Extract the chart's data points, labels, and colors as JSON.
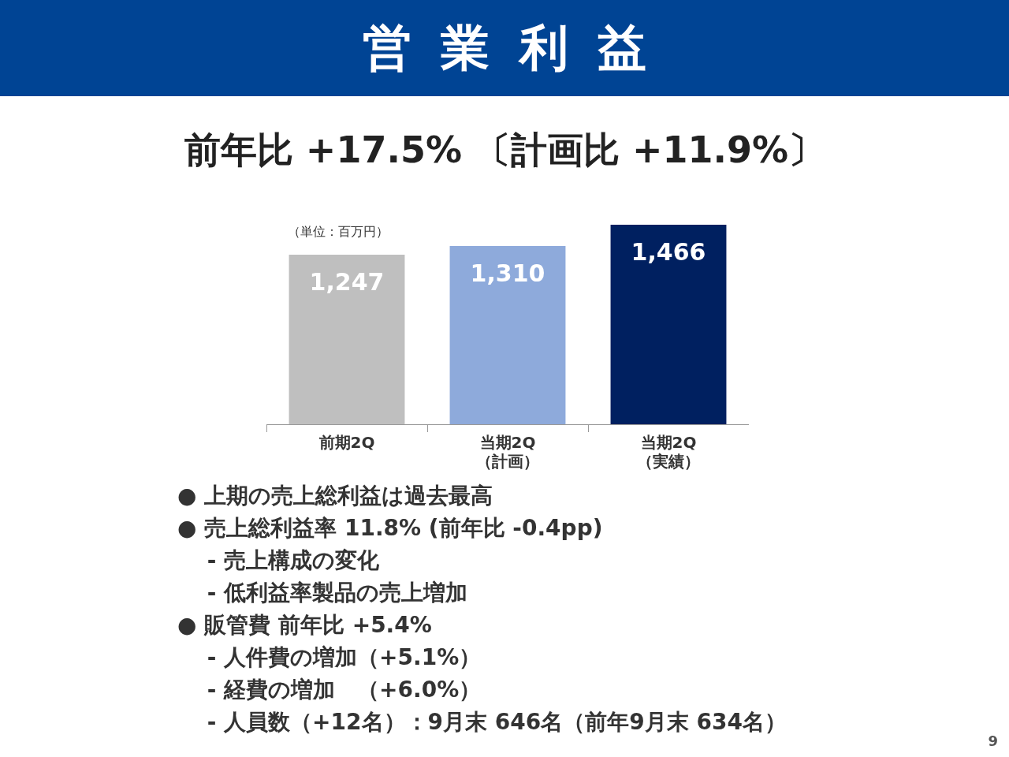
{
  "chart_data": {
    "type": "bar",
    "title": "営業利益",
    "subtitle": "前年比 +17.5% 〔計画比 +11.9%〕",
    "ylabel": "（単位：百万円）",
    "categories": [
      "前期2Q",
      "当期2Q\n（計画）",
      "当期2Q\n（実績）"
    ],
    "values": [
      1247,
      1310,
      1466
    ],
    "colors": [
      "#bfbfbf",
      "#8eaadb",
      "#002060"
    ],
    "value_labels": [
      "1,247",
      "1,310",
      "1,466"
    ],
    "relative": false,
    "annotations": [
      "● 上期の売上総利益は過去最高",
      "● 売上総利益率 11.8% (前年比 -0.4pp)",
      "　 - 売上構成の変化",
      "　 - 低利益率製品の売上増加",
      "● 販管費 前年比 +5.4%",
      "　 - 人件費の増加（+5.1%）",
      "　 - 経費の増加　（+6.0%）",
      "　 - 人員数（+12名）：9月末 646名（前年9月末 634名）",
      "9"
    ]
  }
}
